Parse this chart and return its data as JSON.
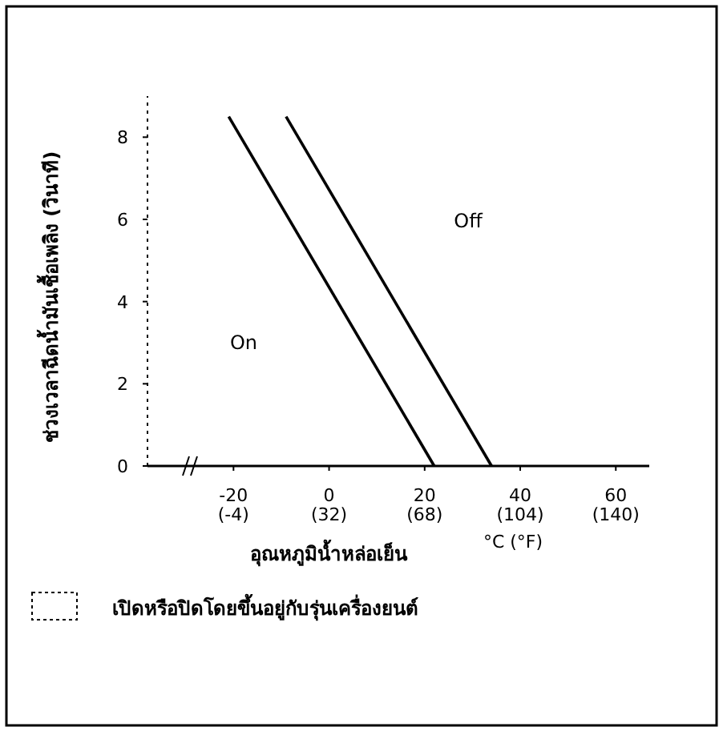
{
  "chart_data": {
    "type": "line",
    "ylabel": "ช่วงเวลาฉีดน้ำมันเชื้อเพลิง (วินาที)",
    "xlabel": "อุณหภูมิน้ำหล่อเย็น",
    "series": [
      {
        "color": "#000000",
        "x": [
          -21,
          22
        ],
        "values": [
          8.5,
          0
        ]
      },
      {
        "color": "#000000",
        "x": [
          -9,
          34
        ],
        "values": [
          8.5,
          0
        ]
      }
    ],
    "xlim": [
      -38,
      67
    ],
    "ylim": [
      0,
      9
    ],
    "xticks": [
      -20,
      0,
      20,
      40,
      60
    ],
    "x2lim": [
      -36.4,
      152.6
    ],
    "x2ticks": [
      {
        "value": -4,
        "label": "(-4)"
      },
      {
        "value": 32,
        "label": "(32)"
      },
      {
        "value": 68,
        "label": "(68)"
      },
      {
        "value": 104,
        "label": "(104)"
      },
      {
        "value": 140,
        "label": "(140)"
      }
    ],
    "yticks": [
      0,
      2,
      4,
      6,
      8
    ],
    "grid": false,
    "marker": "none",
    "line_style": "solid",
    "annotations": [
      "On",
      "Off",
      "°C (°F)",
      "เปิดหรือปิดโดยขึ้นอยู่กับรุ่นเครื่องยนต์"
    ]
  }
}
